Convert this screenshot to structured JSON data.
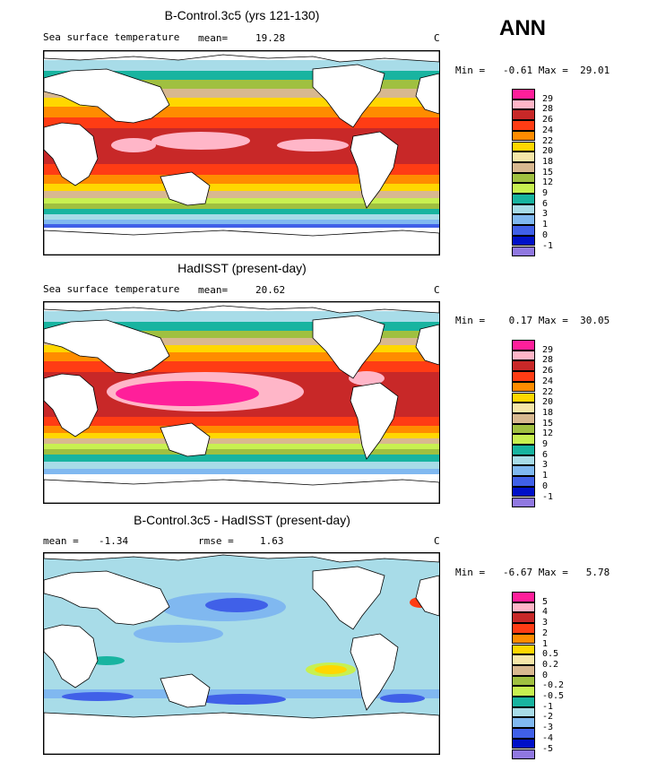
{
  "season": "ANN",
  "panels": [
    {
      "title": "B-Control.3c5 (yrs 121-130)",
      "left_label": "Sea surface temperature",
      "stat_label": "mean=",
      "stat_value": "19.28",
      "units": "C",
      "minmax": "Min =   -0.61 Max =  29.01",
      "legend": {
        "colors": [
          "#ff1f9a",
          "#ffb6c8",
          "#c82828",
          "#ff3c14",
          "#ff8c00",
          "#ffd700",
          "#f6e6a8",
          "#d8b890",
          "#a0c040",
          "#c8f050",
          "#18b4a0",
          "#a8dce8",
          "#80b8f0",
          "#4060e8",
          "#0010c8",
          "#9078e0"
        ],
        "labels": [
          "29",
          "28",
          "26",
          "24",
          "22",
          "20",
          "18",
          "15",
          "12",
          "9",
          "6",
          "3",
          "1",
          "0",
          "-1"
        ]
      }
    },
    {
      "title": "HadISST (present-day)",
      "left_label": "Sea surface temperature",
      "stat_label": "mean=",
      "stat_value": "20.62",
      "units": "C",
      "minmax": "Min =    0.17 Max =  30.05",
      "legend": {
        "colors": [
          "#ff1f9a",
          "#ffb6c8",
          "#c82828",
          "#ff3c14",
          "#ff8c00",
          "#ffd700",
          "#f6e6a8",
          "#d8b890",
          "#a0c040",
          "#c8f050",
          "#18b4a0",
          "#a8dce8",
          "#80b8f0",
          "#4060e8",
          "#0010c8",
          "#9078e0"
        ],
        "labels": [
          "29",
          "28",
          "26",
          "24",
          "22",
          "20",
          "18",
          "15",
          "12",
          "9",
          "6",
          "3",
          "1",
          "0",
          "-1"
        ]
      }
    },
    {
      "title": "B-Control.3c5 - HadISST (present-day)",
      "left_label": "mean =",
      "stat_label": "rmse =",
      "stat_value": "1.63",
      "mean_value": "-1.34",
      "units": "C",
      "minmax": "Min =   -6.67 Max =   5.78",
      "legend": {
        "colors": [
          "#ff1f9a",
          "#ffb6c8",
          "#c82828",
          "#ff3c14",
          "#ff8c00",
          "#ffd700",
          "#f6e6a8",
          "#d8b890",
          "#a0c040",
          "#c8f050",
          "#18b4a0",
          "#a8dce8",
          "#80b8f0",
          "#4060e8",
          "#0010c8",
          "#9078e0"
        ],
        "labels": [
          "5",
          "4",
          "3",
          "2",
          "1",
          "0.5",
          "0.2",
          "0",
          "-0.2",
          "-0.5",
          "-1",
          "-2",
          "-3",
          "-4",
          "-5"
        ]
      }
    }
  ]
}
